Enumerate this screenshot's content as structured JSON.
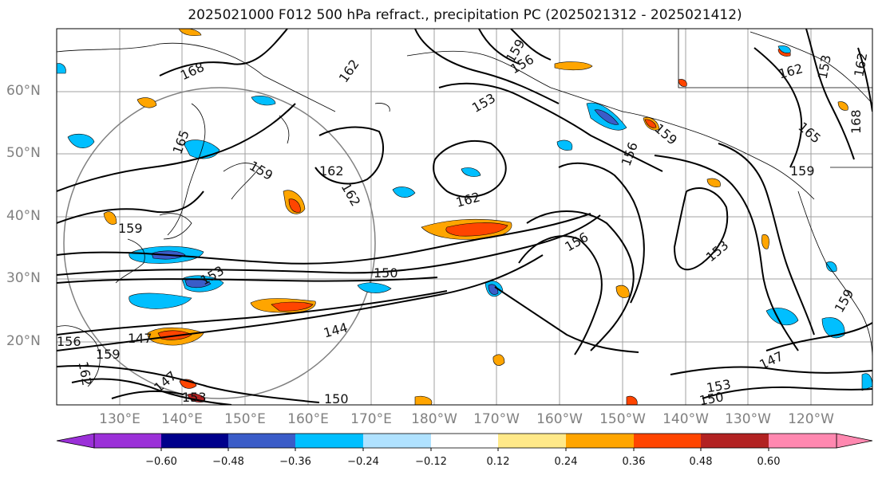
{
  "title": "2025021000 F012 500 hPa refract., precipitation PC (2025021312 - 2025021412)",
  "lat_labels": [
    "60°N",
    "50°N",
    "40°N",
    "30°N",
    "20°N"
  ],
  "lon_labels": [
    "130°E",
    "140°E",
    "150°E",
    "160°E",
    "170°E",
    "180°W",
    "170°W",
    "160°W",
    "150°W",
    "140°W",
    "130°W",
    "120°W"
  ],
  "contour_labels": [
    "168",
    "162",
    "159",
    "156",
    "153",
    "165",
    "159",
    "162",
    "162",
    "162",
    "162",
    "153",
    "156",
    "159",
    "165",
    "159",
    "168",
    "162",
    "159",
    "153",
    "150",
    "156",
    "153",
    "147",
    "144",
    "147",
    "159",
    "162",
    "156",
    "147",
    "153",
    "150",
    "153",
    "159",
    "150"
  ],
  "colorbar": {
    "colors": [
      "#9b30d8",
      "#00008b",
      "#3a5cc8",
      "#00bfff",
      "#b0e2ff",
      "#ffffff",
      "#ffe989",
      "#ffa500",
      "#ff4500",
      "#b22222",
      "#ff88b0"
    ],
    "tick_labels": [
      "−0.60",
      "−0.48",
      "−0.36",
      "−0.24",
      "−0.12",
      "0.12",
      "0.24",
      "0.36",
      "0.48",
      "0.60"
    ]
  },
  "colors": {
    "contour": "#000000",
    "grid": "#a0a0a0",
    "coast": "#000000"
  }
}
